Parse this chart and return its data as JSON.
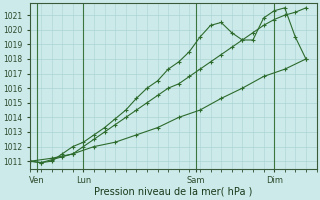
{
  "xlabel": "Pression niveau de la mer( hPa )",
  "ylim": [
    1010.5,
    1021.8
  ],
  "yticks": [
    1011,
    1012,
    1013,
    1014,
    1015,
    1016,
    1017,
    1018,
    1019,
    1020,
    1021
  ],
  "bg_color": "#cdeaea",
  "grid_color": "#aad4d4",
  "line_color": "#2d6b2d",
  "xlim": [
    0,
    13.5
  ],
  "day_labels": [
    "Ven",
    "Lun",
    "Sam",
    "Dim"
  ],
  "day_positions": [
    0.3,
    2.5,
    7.8,
    11.5
  ],
  "line1_x": [
    0.0,
    0.5,
    1.0,
    1.5,
    2.0,
    2.5,
    3.0,
    3.5,
    4.0,
    4.5,
    5.0,
    5.5,
    6.0,
    6.5,
    7.0,
    7.5,
    8.0,
    8.5,
    9.0,
    9.5,
    10.0,
    10.5,
    11.0,
    11.5,
    12.0,
    12.5,
    13.0
  ],
  "line1_y": [
    1011.0,
    1010.9,
    1011.1,
    1011.3,
    1011.5,
    1012.0,
    1012.5,
    1013.0,
    1013.5,
    1014.0,
    1014.5,
    1015.0,
    1015.5,
    1016.0,
    1016.3,
    1016.8,
    1017.3,
    1017.8,
    1018.3,
    1018.8,
    1019.3,
    1019.8,
    1020.3,
    1020.7,
    1021.0,
    1021.2,
    1021.5
  ],
  "line2_x": [
    0.0,
    0.5,
    1.0,
    1.5,
    2.0,
    2.5,
    3.0,
    3.5,
    4.0,
    4.5,
    5.0,
    5.5,
    6.0,
    6.5,
    7.0,
    7.5,
    8.0,
    8.5,
    9.0,
    9.5,
    10.0,
    10.5,
    11.0,
    11.5,
    12.0,
    12.5,
    13.0
  ],
  "line2_y": [
    1011.0,
    1010.9,
    1011.0,
    1011.5,
    1012.0,
    1012.3,
    1012.8,
    1013.3,
    1013.9,
    1014.5,
    1015.3,
    1016.0,
    1016.5,
    1017.3,
    1017.8,
    1018.5,
    1019.5,
    1020.3,
    1020.5,
    1019.8,
    1019.3,
    1019.3,
    1020.8,
    1021.3,
    1021.5,
    1019.5,
    1018.0
  ],
  "line3_x": [
    0.0,
    1.0,
    2.0,
    3.0,
    4.0,
    5.0,
    6.0,
    7.0,
    8.0,
    9.0,
    10.0,
    11.0,
    12.0,
    13.0
  ],
  "line3_y": [
    1011.0,
    1011.2,
    1011.5,
    1012.0,
    1012.3,
    1012.8,
    1013.3,
    1014.0,
    1014.5,
    1015.3,
    1016.0,
    1016.8,
    1017.3,
    1018.0
  ]
}
